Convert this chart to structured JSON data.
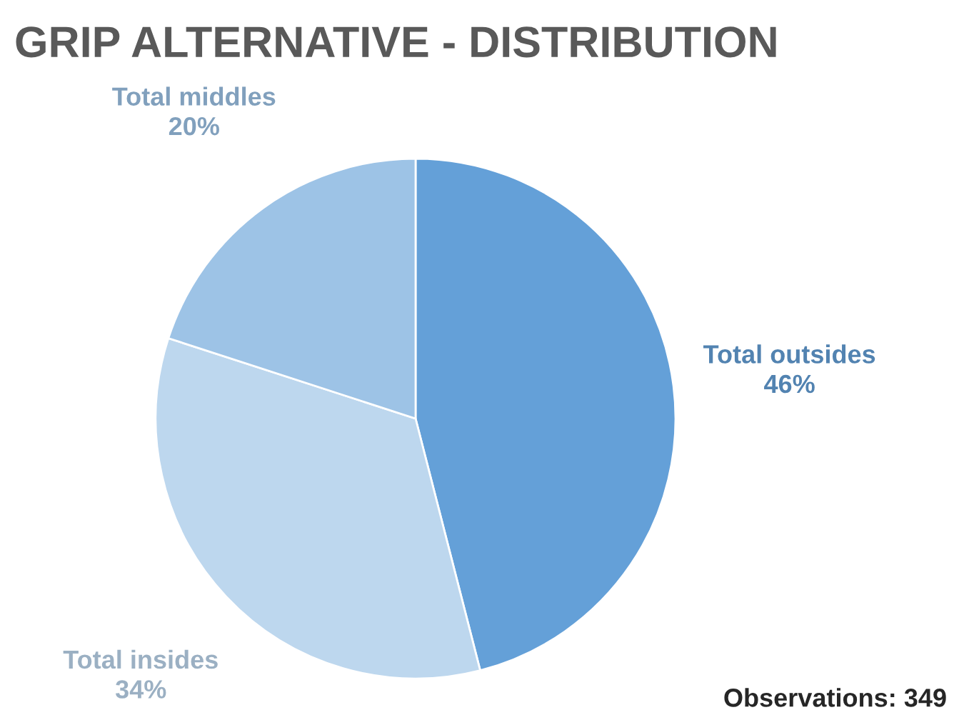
{
  "chart_data": {
    "type": "pie",
    "title": "GRIP ALTERNATIVE - DISTRIBUTION",
    "categories": [
      "Total outsides",
      "Total insides",
      "Total middles"
    ],
    "values": [
      46,
      34,
      20
    ],
    "colors": [
      "#64a0d8",
      "#bdd7ee",
      "#9dc3e6"
    ],
    "value_labels": [
      "46%",
      "34%",
      "20%"
    ],
    "legend": false,
    "annotations": [
      "Observations: 349"
    ]
  }
}
